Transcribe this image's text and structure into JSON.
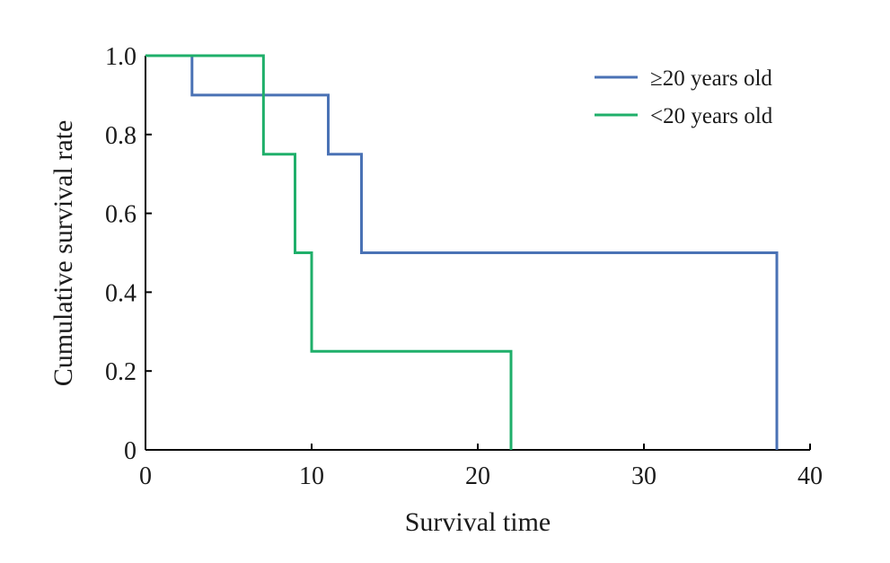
{
  "chart_data": {
    "type": "line",
    "step": "post",
    "title": "",
    "xlabel": "Survival time",
    "ylabel": "Cumulative survival rate",
    "xlim": [
      0,
      40
    ],
    "ylim": [
      0,
      1.0
    ],
    "xticks": [
      0,
      10,
      20,
      30,
      40
    ],
    "xtick_labels": [
      "0",
      "10",
      "20",
      "30",
      "40"
    ],
    "yticks": [
      0,
      0.2,
      0.4,
      0.6,
      0.8,
      1.0
    ],
    "ytick_labels": [
      "0",
      "0.2",
      "0.4",
      "0.6",
      "0.8",
      "1.0"
    ],
    "grid": false,
    "legend_position": "top-right",
    "series": [
      {
        "name": "≥20 years old",
        "color": "#4a72b5",
        "x": [
          0,
          2.8,
          11,
          13,
          38
        ],
        "y": [
          1.0,
          0.9,
          0.75,
          0.5,
          0.0
        ]
      },
      {
        "name": "<20 years old",
        "color": "#1faf6a",
        "x": [
          0,
          7.1,
          9,
          10,
          22
        ],
        "y": [
          1.0,
          0.75,
          0.5,
          0.25,
          0.0
        ]
      }
    ]
  }
}
